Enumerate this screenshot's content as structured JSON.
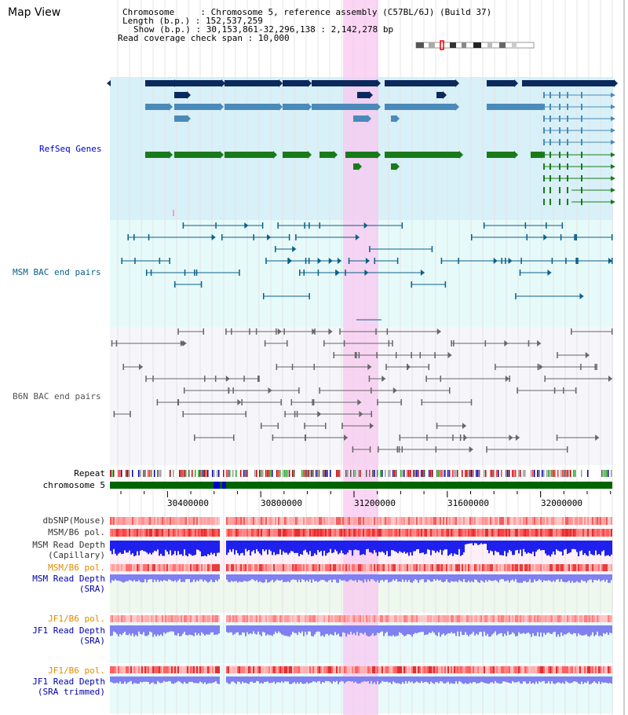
{
  "title": "Map View",
  "header": {
    "chromosome_label": "Chromosome",
    "chromosome_value": "Chromosome 5, reference assembly (C57BL/6J) (Build 37)",
    "length_label": "Length (b.p.)",
    "length_value": "152,537,259",
    "show_label": "Show (b.p.)",
    "show_value": "30,153,861-32,296,138 : 2,142,278 bp",
    "coverage_label": "Read coverage check span",
    "coverage_value": "10,000"
  },
  "tracks": {
    "refseq": "RefSeq Genes",
    "msm_bac": "MSM BAC end pairs",
    "b6n_bac": "B6N BAC end pairs",
    "repeat": "Repeat",
    "chromosome": "chromosome 5",
    "dbsnp": "dbSNP(Mouse)",
    "msm_b6_pol": "MSM/B6 pol.",
    "msm_depth_cap_1": "MSM Read Depth",
    "msm_depth_cap_2": "(Capillary)",
    "msm_b6_pol_2": "MSM/B6 pol.",
    "msm_depth_sra_1": "MSM Read Depth",
    "msm_depth_sra_2": "(SRA)",
    "jf1_pol": "JF1/B6 pol.",
    "jf1_depth_1": "JF1 Read Depth",
    "jf1_depth_2": "(SRA)",
    "jf1_pol_2": "JF1/B6 pol.",
    "jf1_trim_1": "JF1 Read Depth",
    "jf1_trim_2": "(SRA trimmed)"
  },
  "axis_ticks": [
    "30400000",
    "30800000",
    "31200000",
    "31600000",
    "32000000"
  ],
  "colors": {
    "refseq_label": "#0000cc",
    "msm_label": "#0a5f8a",
    "b6n_label": "#555555",
    "pol_orange": "#e08a00",
    "depth_blue": "#0000aa",
    "highlight": "#f8c8f0"
  }
}
